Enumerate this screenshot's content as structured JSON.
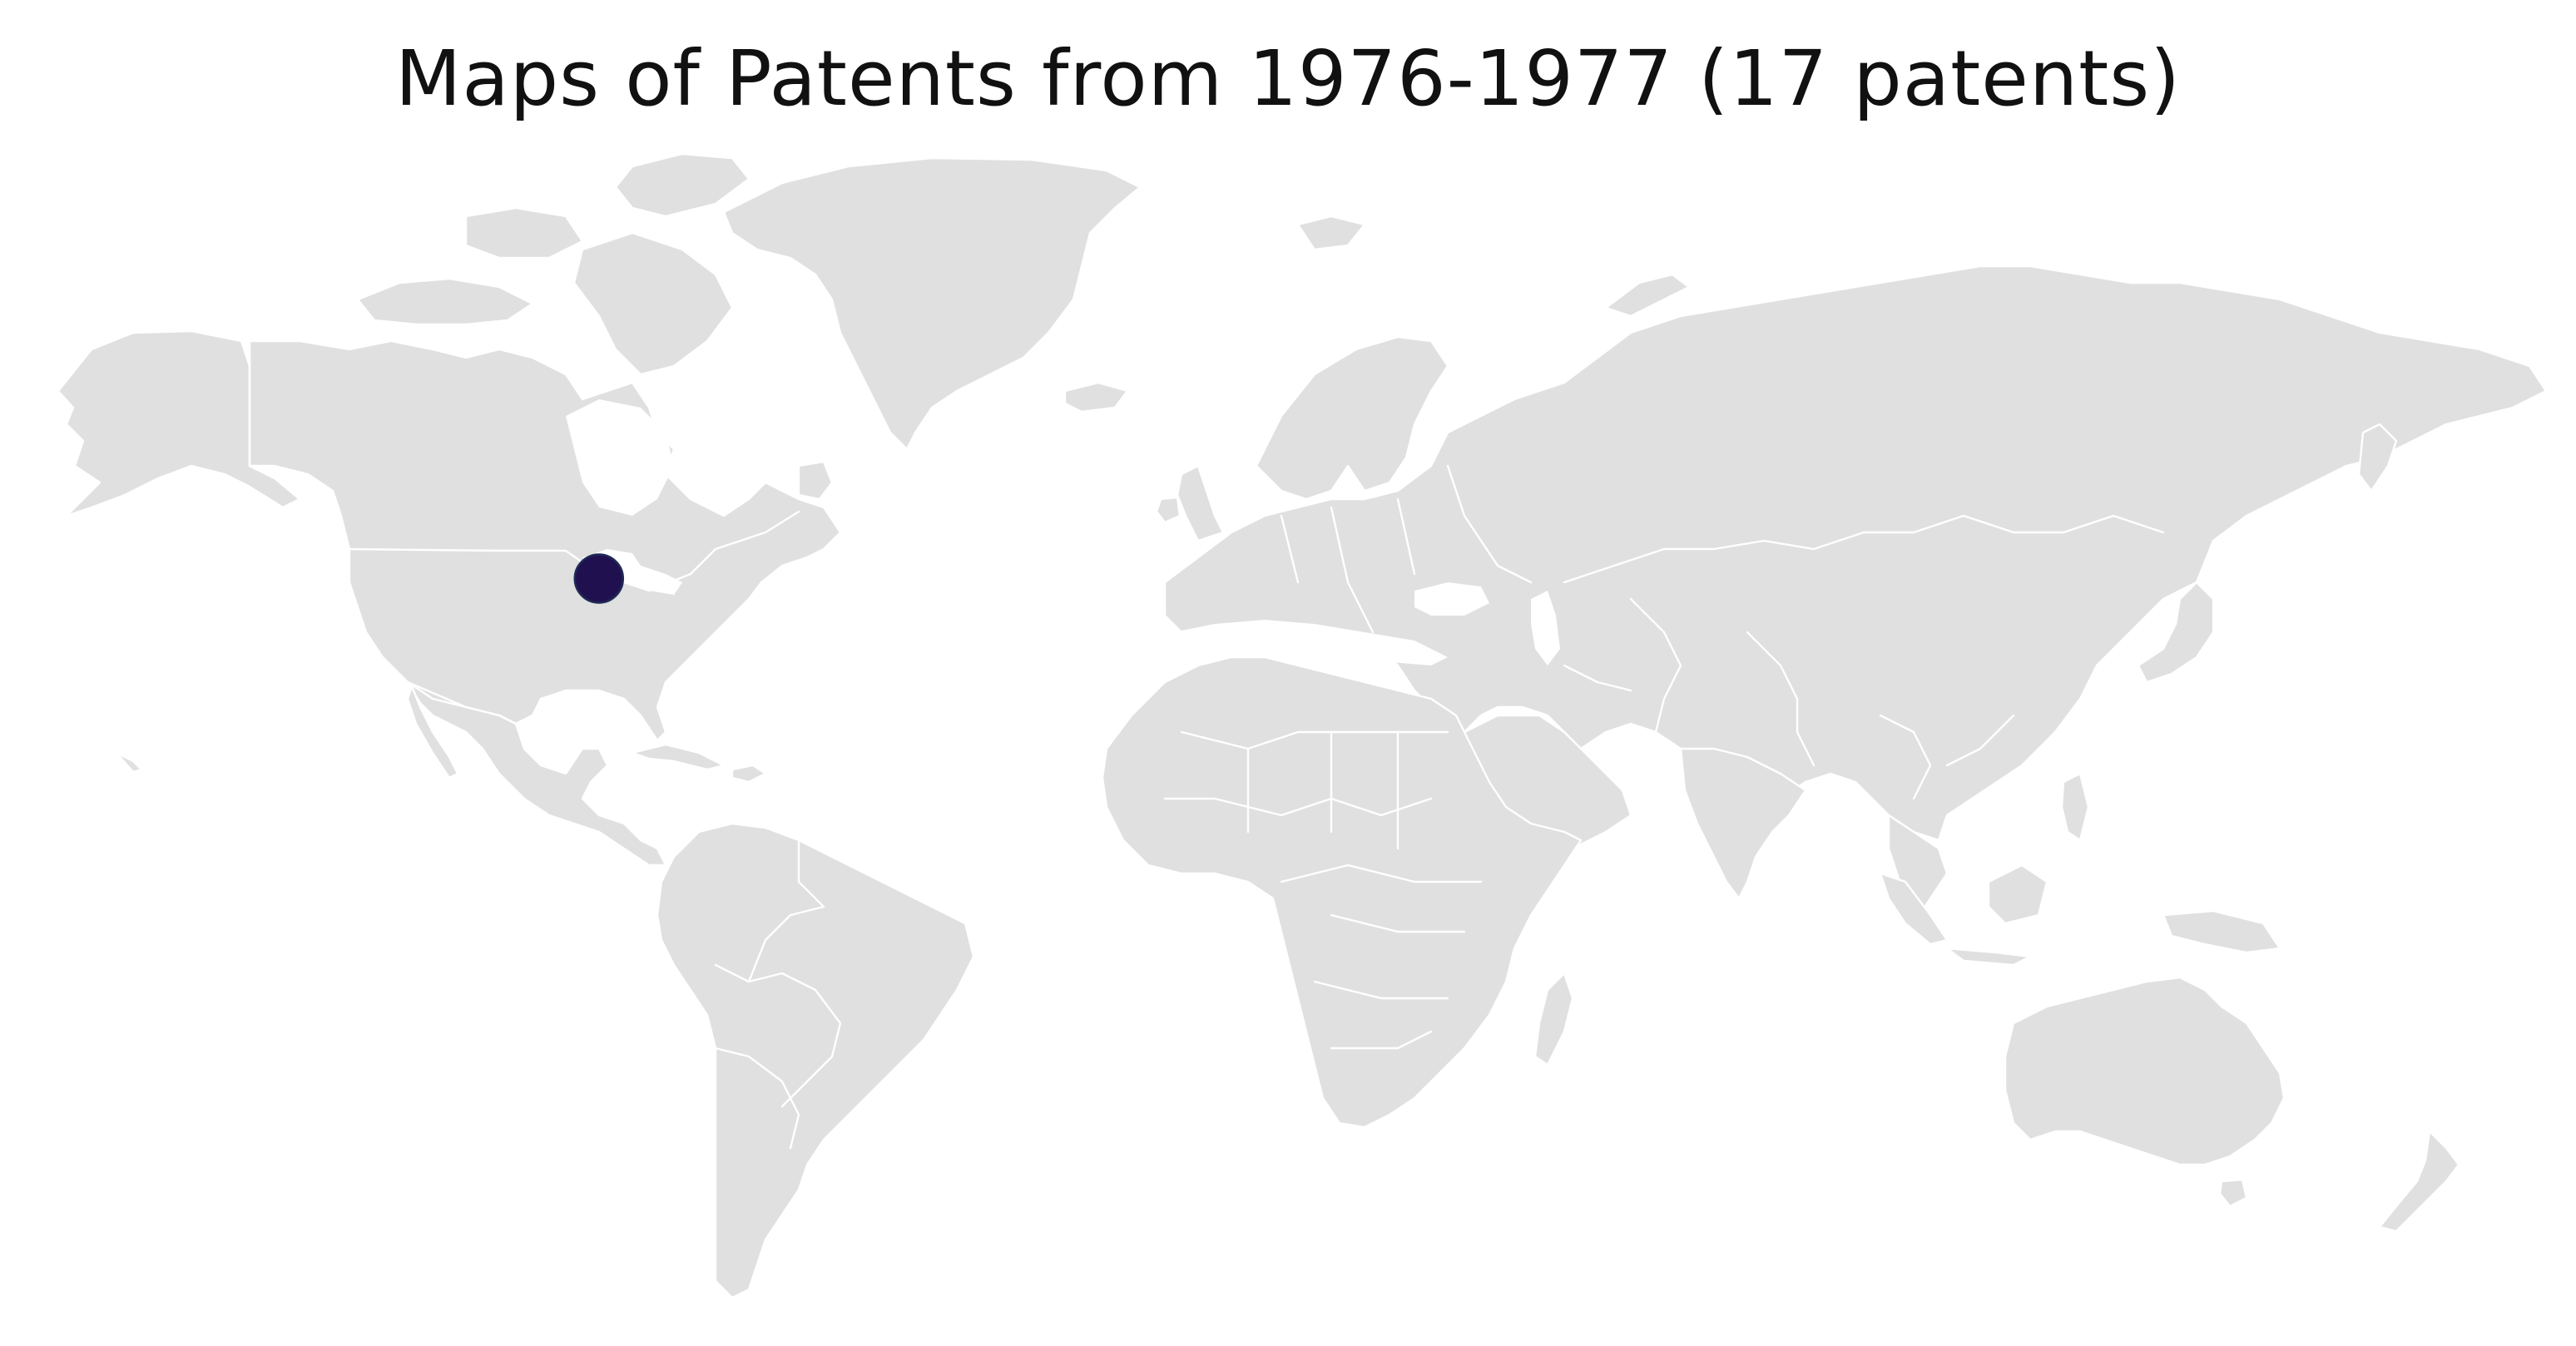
{
  "title": "Maps of Patents from 1976-1977 (17 patents)",
  "colors": {
    "background": "#ffffff",
    "land": "#dfe0df",
    "borders": "#ffffff",
    "marker_fill": "#21104f",
    "title_text": "#111111"
  },
  "map": {
    "projection": "world (plate carree style)",
    "markers": [
      {
        "lat": 47.0,
        "lon": -101.0,
        "count": 17,
        "color": "#21104f"
      }
    ]
  }
}
